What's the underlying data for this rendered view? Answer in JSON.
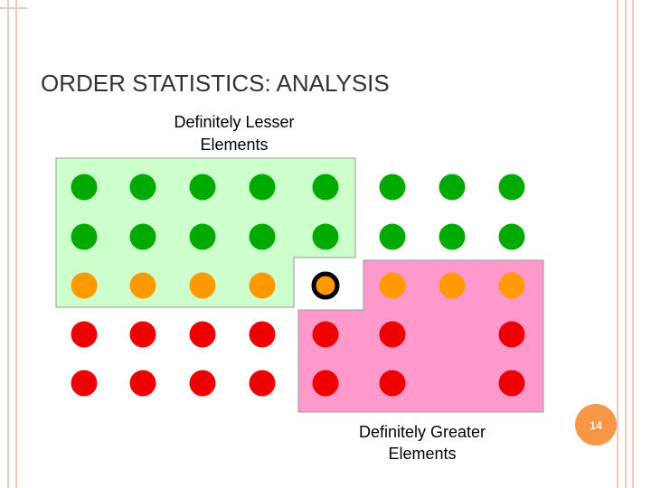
{
  "header": {
    "title": "ORDER STATISTICS: ANALYSIS"
  },
  "labels": {
    "lesser": [
      "Definitely Lesser",
      "Elements"
    ],
    "greater": [
      "Definitely Greater",
      "Elements"
    ]
  },
  "footer": {
    "page_number": "14"
  }
}
